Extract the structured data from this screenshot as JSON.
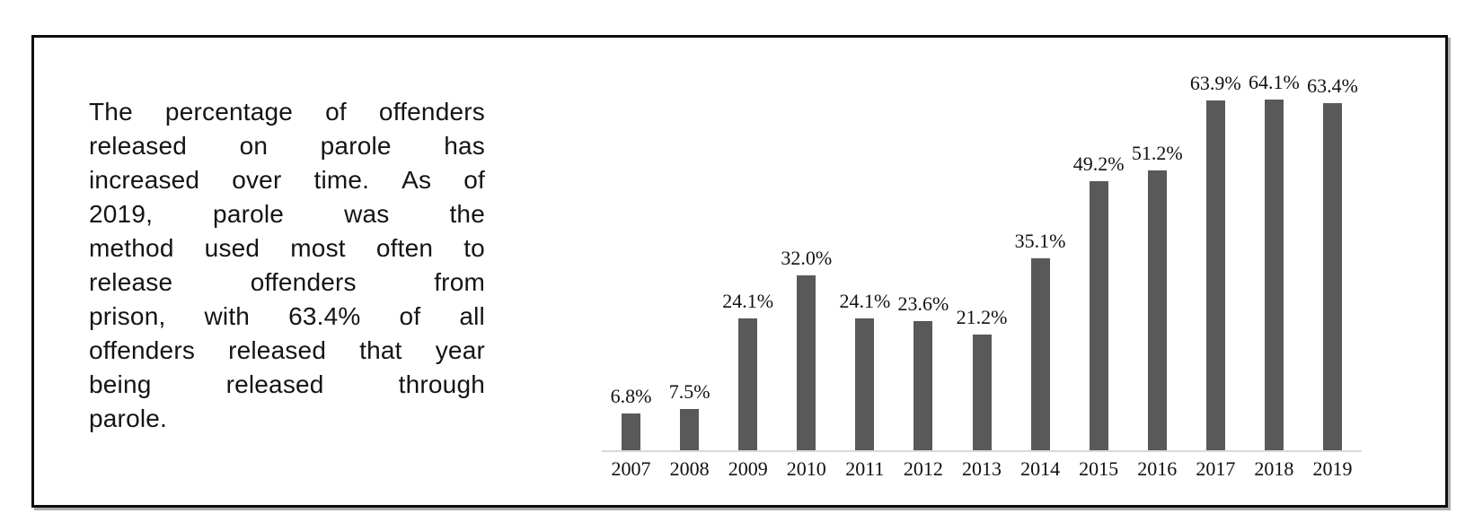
{
  "figure": {
    "background": "#ffffff",
    "border_color": "#0f0f0f"
  },
  "text_panel": {
    "text": "The percentage of offenders released on parole has increased over time. As of 2019, parole was the method used most often to release offenders from prison, with 63.4% of all offenders released that year being released through parole.",
    "lines": [
      "The percentage of offenders",
      "released on parole has",
      "increased over time. As of",
      "2019, parole was the",
      "method used most often to",
      "release offenders from",
      "prison, with 63.4% of all",
      "offenders released that year",
      "being released through",
      "parole."
    ]
  },
  "chart_data": {
    "type": "bar",
    "title": "",
    "xlabel": "",
    "ylabel": "",
    "categories": [
      "2007",
      "2008",
      "2009",
      "2010",
      "2011",
      "2012",
      "2013",
      "2014",
      "2015",
      "2016",
      "2017",
      "2018",
      "2019"
    ],
    "values": [
      6.8,
      7.5,
      24.1,
      32.0,
      24.1,
      23.6,
      21.2,
      35.1,
      49.2,
      51.2,
      63.9,
      64.1,
      63.4
    ],
    "data_labels": [
      "6.8%",
      "7.5%",
      "24.1%",
      "32.0%",
      "24.1%",
      "23.6%",
      "21.2%",
      "35.1%",
      "49.2%",
      "51.2%",
      "63.9%",
      "64.1%",
      "63.4%"
    ],
    "ylim": [
      0,
      70
    ],
    "grid": false,
    "legend": "none",
    "bar_color": "#595959",
    "axis_line_color": "#d9d9d9",
    "label_color": "#111111"
  }
}
